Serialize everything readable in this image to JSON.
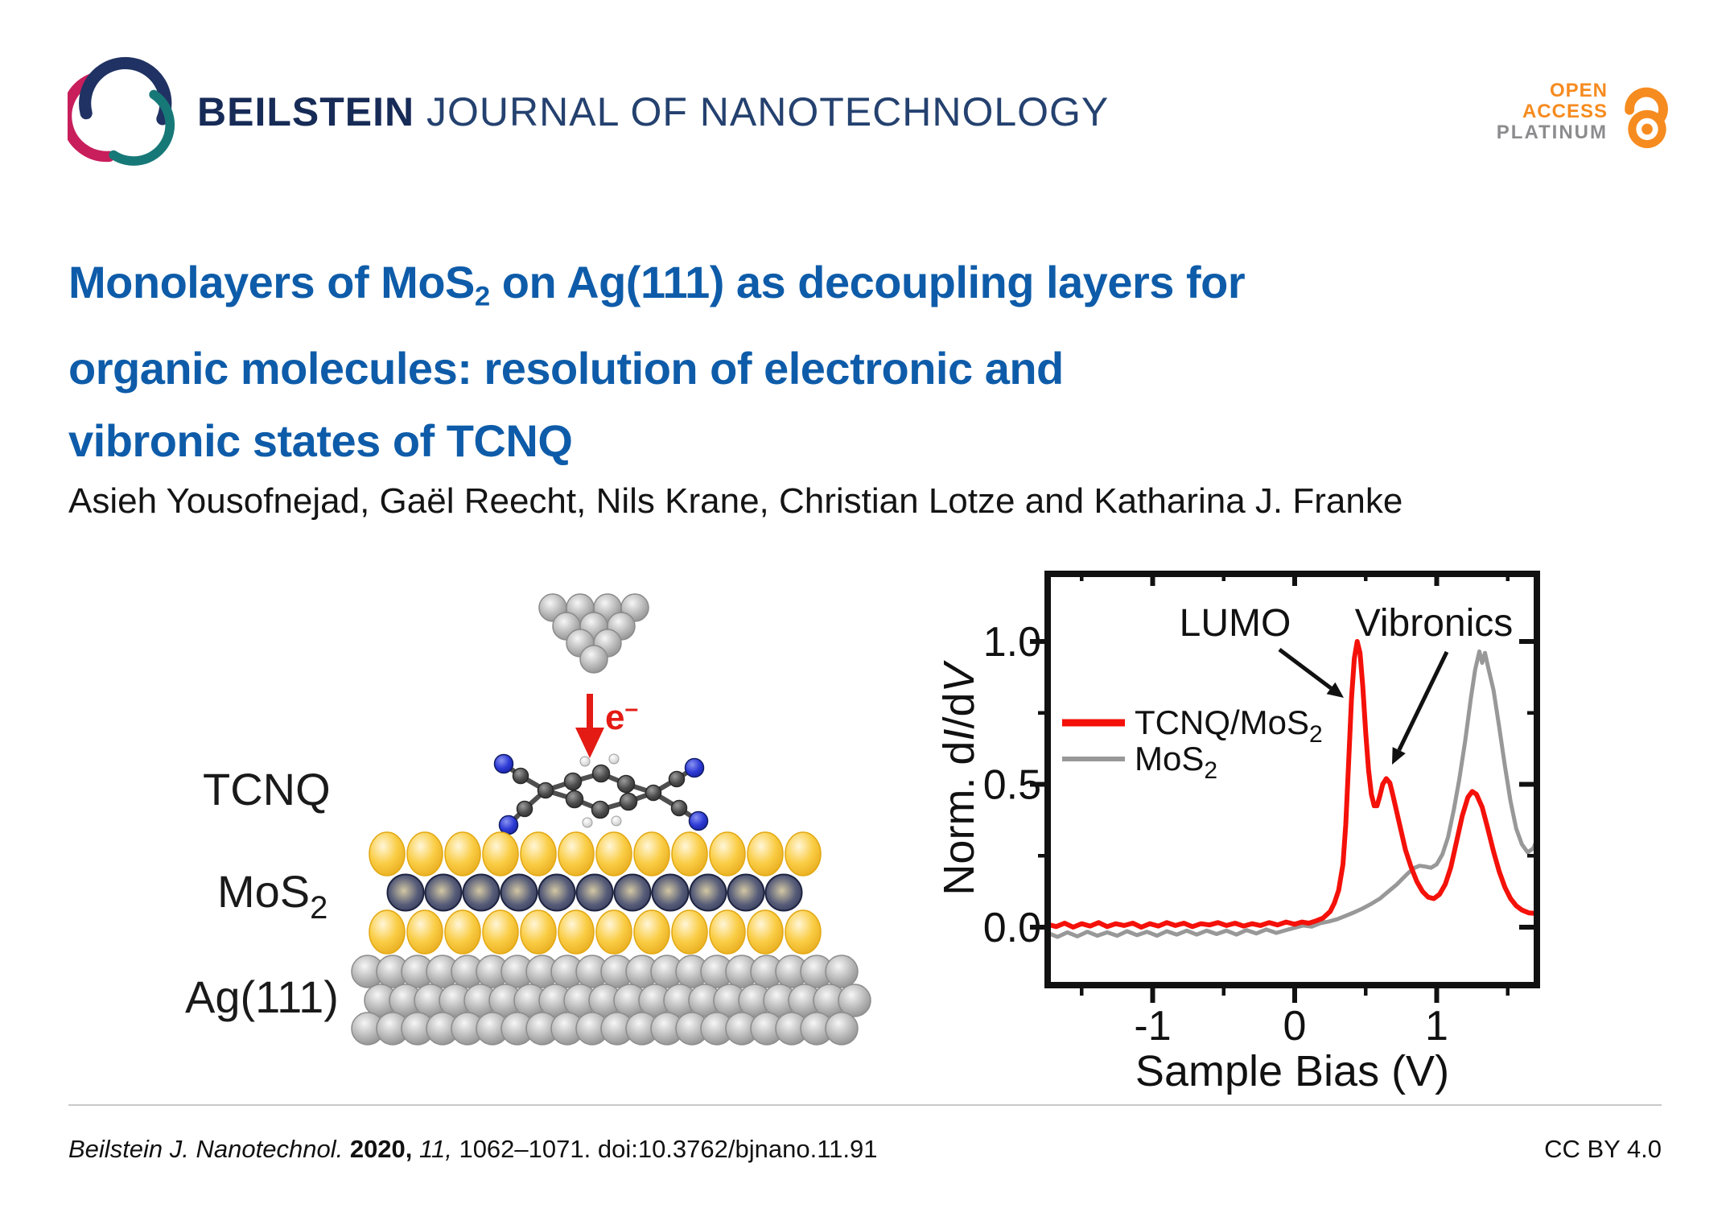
{
  "header": {
    "journal_bold": "BEILSTEIN",
    "journal_rest": " JOURNAL OF NANOTECHNOLOGY",
    "badge": {
      "line1": "OPEN",
      "line2": "ACCESS",
      "line3": "PLATINUM"
    }
  },
  "title": {
    "line1_pre": "Monolayers of MoS",
    "line1_sub": "2",
    "line1_post": " on Ag(111) as decoupling layers for",
    "line2": "organic molecules: resolution of electronic and",
    "line3": "vibronic states of TCNQ"
  },
  "authors": "Asieh Yousofnejad, Gaël Reecht, Nils Krane, Christian Lotze and Katharina J. Franke",
  "figure": {
    "labels": {
      "tcnq": "TCNQ",
      "mos2_main": "MoS",
      "mos2_sub": "2",
      "ag": "Ag(111)",
      "electron_main": "e",
      "electron_sup": "–"
    }
  },
  "chart_data": {
    "type": "line",
    "xlabel": "Sample Bias (V)",
    "ylabel_parts": [
      {
        "t": "Norm. d",
        "i": false
      },
      {
        "t": "I",
        "i": true
      },
      {
        "t": "/d",
        "i": false
      },
      {
        "t": "V",
        "i": true
      }
    ],
    "xlim": [
      -1.74,
      1.71
    ],
    "ylim": [
      -0.2,
      1.24
    ],
    "x_ticks": [
      -1,
      0,
      1
    ],
    "x_tick_labels": [
      "-1",
      "0",
      "1"
    ],
    "x_minor_ticks": [
      -1.5,
      -0.5,
      0.5,
      1.5
    ],
    "y_ticks": [
      0.0,
      0.5,
      1.0
    ],
    "y_tick_labels": [
      "0.0",
      "0.5",
      "1.0"
    ],
    "y_minor_ticks": [
      0.25,
      0.75
    ],
    "grid": false,
    "legend_position": "upper-left-inside",
    "legend": [
      {
        "label_main": "TCNQ/MoS",
        "label_sub": "2",
        "color": "#F41109"
      },
      {
        "label_main": "MoS",
        "label_sub": "2",
        "color": "#989898"
      }
    ],
    "annotations": [
      {
        "text": "LUMO"
      },
      {
        "text": "Vibronics"
      }
    ],
    "series": [
      {
        "name": "TCNQ/MoS2",
        "color": "#F41109",
        "x": [
          -1.74,
          -1.68,
          -1.62,
          -1.56,
          -1.5,
          -1.44,
          -1.38,
          -1.32,
          -1.26,
          -1.2,
          -1.14,
          -1.08,
          -1.02,
          -0.96,
          -0.9,
          -0.84,
          -0.78,
          -0.72,
          -0.66,
          -0.6,
          -0.54,
          -0.48,
          -0.42,
          -0.36,
          -0.3,
          -0.24,
          -0.18,
          -0.12,
          -0.06,
          0.0,
          0.05,
          0.1,
          0.15,
          0.2,
          0.25,
          0.28,
          0.31,
          0.34,
          0.36,
          0.38,
          0.4,
          0.42,
          0.44,
          0.46,
          0.48,
          0.5,
          0.52,
          0.54,
          0.56,
          0.58,
          0.6,
          0.62,
          0.645,
          0.67,
          0.69,
          0.72,
          0.75,
          0.78,
          0.82,
          0.86,
          0.9,
          0.94,
          0.98,
          1.02,
          1.06,
          1.1,
          1.14,
          1.18,
          1.22,
          1.25,
          1.28,
          1.32,
          1.36,
          1.4,
          1.44,
          1.48,
          1.52,
          1.56,
          1.6,
          1.65,
          1.71
        ],
        "y": [
          0.01,
          0.002,
          0.014,
          0.0,
          0.012,
          0.004,
          0.016,
          0.002,
          0.012,
          0.006,
          0.014,
          0.0,
          0.012,
          0.004,
          0.016,
          0.006,
          0.014,
          0.002,
          0.012,
          0.008,
          0.016,
          0.006,
          0.014,
          0.004,
          0.012,
          0.006,
          0.016,
          0.008,
          0.018,
          0.01,
          0.018,
          0.014,
          0.022,
          0.032,
          0.055,
          0.085,
          0.13,
          0.22,
          0.36,
          0.58,
          0.8,
          0.94,
          1.0,
          0.96,
          0.84,
          0.68,
          0.55,
          0.465,
          0.425,
          0.425,
          0.46,
          0.5,
          0.52,
          0.505,
          0.465,
          0.4,
          0.335,
          0.27,
          0.21,
          0.16,
          0.125,
          0.105,
          0.1,
          0.115,
          0.15,
          0.21,
          0.3,
          0.39,
          0.455,
          0.475,
          0.465,
          0.42,
          0.345,
          0.265,
          0.195,
          0.14,
          0.1,
          0.075,
          0.06,
          0.05,
          0.048
        ]
      },
      {
        "name": "MoS2",
        "color": "#989898",
        "x": [
          -1.74,
          -1.67,
          -1.6,
          -1.53,
          -1.46,
          -1.39,
          -1.32,
          -1.25,
          -1.18,
          -1.11,
          -1.04,
          -0.97,
          -0.9,
          -0.83,
          -0.76,
          -0.69,
          -0.62,
          -0.55,
          -0.48,
          -0.41,
          -0.34,
          -0.27,
          -0.2,
          -0.13,
          -0.06,
          0.0,
          0.06,
          0.12,
          0.18,
          0.24,
          0.3,
          0.36,
          0.42,
          0.48,
          0.54,
          0.6,
          0.66,
          0.72,
          0.76,
          0.8,
          0.84,
          0.88,
          0.92,
          0.96,
          1.0,
          1.04,
          1.08,
          1.12,
          1.16,
          1.2,
          1.24,
          1.27,
          1.3,
          1.32,
          1.34,
          1.36,
          1.4,
          1.44,
          1.48,
          1.52,
          1.56,
          1.6,
          1.64,
          1.68,
          1.71
        ],
        "y": [
          -0.02,
          -0.034,
          -0.018,
          -0.032,
          -0.016,
          -0.03,
          -0.018,
          -0.03,
          -0.014,
          -0.028,
          -0.016,
          -0.03,
          -0.014,
          -0.026,
          -0.012,
          -0.026,
          -0.012,
          -0.024,
          -0.012,
          -0.026,
          -0.01,
          -0.022,
          -0.008,
          -0.02,
          -0.01,
          -0.002,
          0.006,
          0.002,
          0.014,
          0.02,
          0.028,
          0.04,
          0.052,
          0.066,
          0.082,
          0.1,
          0.125,
          0.15,
          0.17,
          0.19,
          0.207,
          0.215,
          0.212,
          0.208,
          0.22,
          0.255,
          0.315,
          0.41,
          0.52,
          0.65,
          0.8,
          0.9,
          0.965,
          0.925,
          0.96,
          0.915,
          0.83,
          0.7,
          0.565,
          0.44,
          0.345,
          0.29,
          0.262,
          0.276,
          0.31
        ]
      }
    ]
  },
  "footer": {
    "citation_italic1": "Beilstein J. Nanotechnol.",
    "citation_bold": "2020,",
    "citation_italic2": "11,",
    "citation_rest": "1062–1071. doi:10.3762/bjnano.11.91",
    "license": "CC BY 4.0"
  },
  "colors": {
    "title_blue": "#0E5CA9",
    "journal_navy": "#172B57",
    "journal_navy_light": "#24416F",
    "badge_orange": "#F68B1F",
    "badge_gray": "#8C8C8E",
    "logo_navy": "#203263",
    "logo_pink": "#C81E5B",
    "logo_teal": "#177878",
    "accent_red": "#E31B14",
    "curve_red": "#F41109",
    "curve_gray": "#989898",
    "sulfur_yellow": "#F8CB3E",
    "mo_navy": "#3A4060",
    "silver_gray": "#ABABAB",
    "nitrogen_blue": "#2433CC",
    "carbon_gray": "#474747",
    "text_black": "#1A1A1A"
  }
}
